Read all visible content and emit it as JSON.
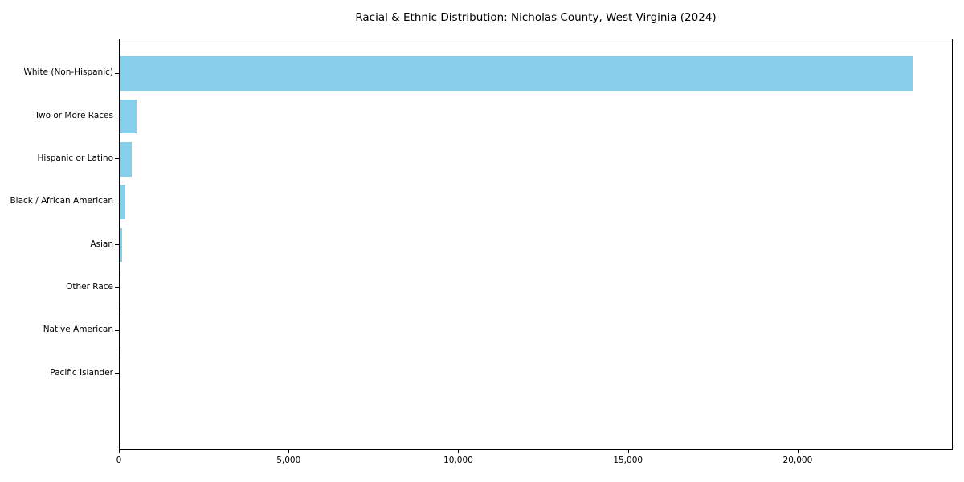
{
  "chart_data": {
    "type": "bar",
    "orientation": "horizontal",
    "title": "Racial & Ethnic Distribution: Nicholas County, West Virginia (2024)",
    "xlabel": "",
    "ylabel": "",
    "categories": [
      "White (Non-Hispanic)",
      "Two or More Races",
      "Hispanic or Latino",
      "Black / African American",
      "Asian",
      "Other Race",
      "Native American",
      "Pacific Islander"
    ],
    "values": [
      23400,
      500,
      360,
      165,
      60,
      20,
      12,
      4
    ],
    "bar_color": "#87CEEB",
    "xlim": [
      0,
      24570
    ],
    "xticks": [
      0,
      5000,
      10000,
      15000,
      20000
    ],
    "xtick_labels": [
      "0",
      "5,000",
      "10,000",
      "15,000",
      "20,000"
    ],
    "grid": false,
    "legend": "none",
    "axis_color": "#000000",
    "background_color": "#ffffff"
  }
}
